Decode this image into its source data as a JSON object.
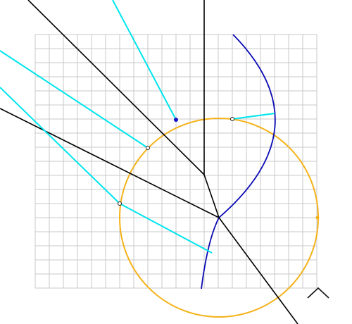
{
  "diagram": {
    "colors": {
      "grid": "#c8c8c8",
      "construction_line": "#000000",
      "ray": "#00e5ee",
      "curve": "#0a0ab4",
      "circle": "#f5b21a",
      "point": "#1414c8"
    },
    "grid": {
      "columns": 20,
      "rows": 18
    },
    "icons": {
      "toggle": "chevron-up-icon"
    }
  }
}
